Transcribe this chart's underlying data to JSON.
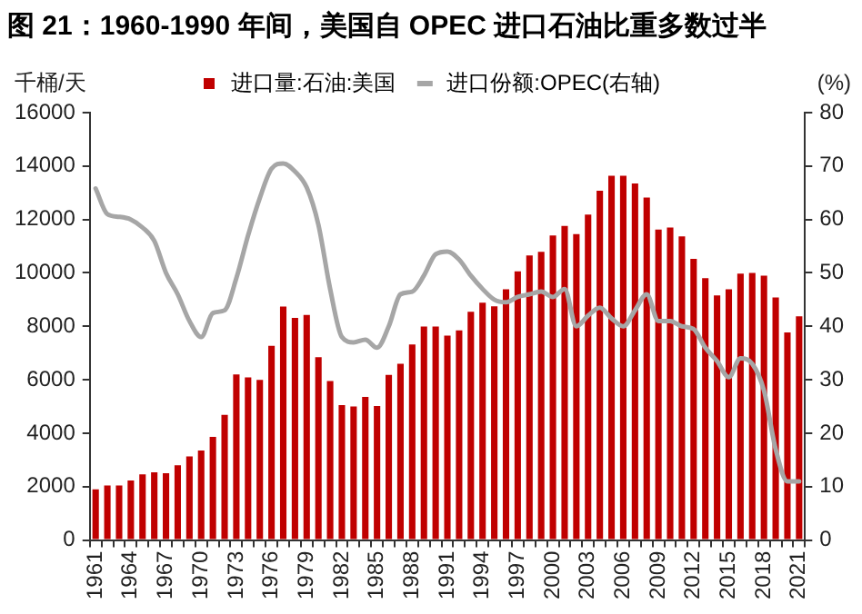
{
  "chart_data": {
    "type": "bar",
    "title": "图 21：1960-1990 年间，美国自 OPEC 进口石油比重多数过半",
    "ylabel": "千桶/天",
    "y2label": "(%)",
    "categories": [
      "1961",
      null,
      null,
      "1964",
      null,
      null,
      "1967",
      null,
      null,
      "1970",
      null,
      null,
      "1973",
      null,
      null,
      "1976",
      null,
      null,
      "1979",
      null,
      null,
      "1982",
      null,
      null,
      "1985",
      null,
      null,
      "1988",
      null,
      null,
      "1991",
      null,
      null,
      "1994",
      null,
      null,
      "1997",
      null,
      null,
      "2000",
      null,
      null,
      "2003",
      null,
      null,
      "2006",
      null,
      null,
      "2009",
      null,
      null,
      "2012",
      null,
      null,
      "2015",
      null,
      null,
      "2018",
      null,
      null,
      "2021"
    ],
    "series": [
      {
        "name": "进口量:石油:美国",
        "color": "#c00000",
        "values": [
          1900,
          2040,
          2040,
          2230,
          2460,
          2540,
          2500,
          2800,
          3130,
          3350,
          3860,
          4690,
          6200,
          6090,
          6000,
          7270,
          8740,
          8320,
          8430,
          6850,
          5950,
          5050,
          5000,
          5360,
          5020,
          6180,
          6600,
          7320,
          7990,
          7990,
          7650,
          7850,
          8550,
          8890,
          8750,
          9390,
          10060,
          10650,
          10790,
          11400,
          11760,
          11450,
          12180,
          13080,
          13640,
          13640,
          13350,
          12820,
          11620,
          11700,
          11370,
          10530,
          9800,
          9160,
          9390,
          9970,
          10000,
          9900,
          9080,
          7770,
          8380
        ]
      },
      {
        "name": "进口份额:OPEC(右轴)",
        "type": "line",
        "axis": "y2",
        "color": "#a6a6a6",
        "values": [
          65.8,
          61,
          60.5,
          60,
          58.5,
          56,
          50,
          46,
          41,
          38,
          42.5,
          43,
          49,
          57,
          64,
          69.5,
          70.5,
          69,
          66,
          59,
          47,
          38,
          37,
          37.5,
          36,
          40,
          46,
          46.5,
          49.5,
          53.5,
          54,
          52.5,
          49.5,
          47,
          45,
          44.5,
          45.5,
          46,
          46.5,
          45.5,
          47,
          40,
          42,
          43.5,
          41.5,
          40,
          43,
          46,
          41,
          41,
          40,
          39.5,
          36,
          33.5,
          30.5,
          34,
          33,
          28,
          17,
          11,
          11
        ]
      }
    ],
    "ylim": [
      0,
      16000
    ],
    "yticks": [
      0,
      2000,
      4000,
      6000,
      8000,
      10000,
      12000,
      14000,
      16000
    ],
    "y2lim": [
      0,
      80
    ],
    "y2ticks": [
      0,
      10,
      20,
      30,
      40,
      50,
      60,
      70,
      80
    ],
    "legend": "top",
    "marker": "none",
    "line_style": "solid"
  }
}
